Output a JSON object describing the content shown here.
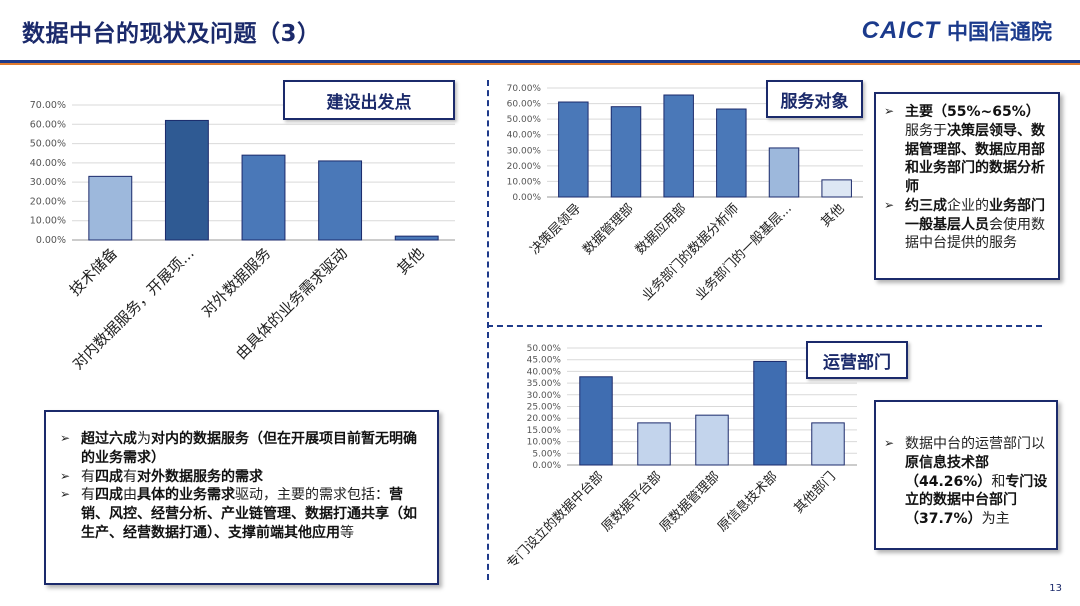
{
  "header": {
    "title": "数据中台的现状及问题（3）",
    "logo_en": "CAICT",
    "logo_cn": "中国信通院"
  },
  "tags": {
    "origin": "建设出发点",
    "service": "服务对象",
    "operation": "运营部门"
  },
  "notes": {
    "left": [
      [
        {
          "t": "超过六成",
          "b": true
        },
        {
          "t": "为",
          "b": false
        },
        {
          "t": "对内的数据服务（但在开展项目前暂无明确的业务需求）",
          "b": true
        }
      ],
      [
        {
          "t": "有",
          "b": false
        },
        {
          "t": "四成",
          "b": true
        },
        {
          "t": "有",
          "b": false
        },
        {
          "t": "对外数据服务的需求",
          "b": true
        }
      ],
      [
        {
          "t": "有",
          "b": false
        },
        {
          "t": "四成",
          "b": true
        },
        {
          "t": "由",
          "b": false
        },
        {
          "t": "具体的业务需求",
          "b": true
        },
        {
          "t": "驱动，主要的需求包括：",
          "b": false
        },
        {
          "t": "营销、风控、经营分析、产业链管理、数据打通共享（如生产、经营数据打通）、支撑前端其他应用",
          "b": true
        },
        {
          "t": "等",
          "b": false
        }
      ]
    ],
    "service": [
      [
        {
          "t": "主要（55%~65%）",
          "b": true
        },
        {
          "t": "服务于",
          "b": false
        },
        {
          "t": "决策层领导、数据管理部、数据应用部和业务部门的数据分析师",
          "b": true
        }
      ],
      [
        {
          "t": "约三成",
          "b": true
        },
        {
          "t": "企业的",
          "b": false
        },
        {
          "t": "业务部门一般基层人员",
          "b": true
        },
        {
          "t": "会使用数据中台提供的服务",
          "b": false
        }
      ]
    ],
    "operation": [
      [
        {
          "t": "数据中台的运营部门以",
          "b": false
        },
        {
          "t": "原信息技术部（44.26%）",
          "b": true
        },
        {
          "t": "和",
          "b": false
        },
        {
          "t": "专门设立的数据中台部门（37.7%）",
          "b": true
        },
        {
          "t": "为主",
          "b": false
        }
      ]
    ]
  },
  "colors": {
    "navy": "#1b2a6b",
    "bar_dark": "#2e5591",
    "bar_mid": "#4a78b8",
    "bar_light": "#a8c0e0",
    "bar_pale": "#c9d8ee",
    "bar_lightest": "#dde7f4"
  },
  "chart_data": [
    {
      "type": "bar",
      "categories": [
        "技术储备",
        "对内数据服务，开展项...",
        "对外数据服务",
        "由具体的业务需求驱动",
        "其他"
      ],
      "values": [
        0.33,
        0.62,
        0.44,
        0.41,
        0.02
      ],
      "ylim": [
        0,
        0.7
      ],
      "yticks": [
        "0.00%",
        "10.00%",
        "20.00%",
        "30.00%",
        "40.00%",
        "50.00%",
        "60.00%",
        "70.00%"
      ],
      "grid": true,
      "bar_colors": [
        "#9db8dc",
        "#2f5a93",
        "#4a78b8",
        "#4a78b8",
        "#4a78b8"
      ]
    },
    {
      "type": "bar",
      "categories": [
        "决策层领导",
        "数据管理部",
        "数据应用部",
        "业务部门的数据分析师",
        "业务部门的一般基层...",
        "其他"
      ],
      "values": [
        0.61,
        0.58,
        0.655,
        0.565,
        0.315,
        0.11
      ],
      "ylim": [
        0,
        0.7
      ],
      "yticks": [
        "0.00%",
        "10.00%",
        "20.00%",
        "30.00%",
        "40.00%",
        "50.00%",
        "60.00%",
        "70.00%"
      ],
      "grid": true,
      "bar_colors": [
        "#4a78b8",
        "#4a78b8",
        "#4a78b8",
        "#4a78b8",
        "#9db8dc",
        "#dde7f4"
      ]
    },
    {
      "type": "bar",
      "categories": [
        "专门设立的数据中台部",
        "原数据平台部",
        "原数据管理部",
        "原信息技术部",
        "其他部门"
      ],
      "values": [
        0.377,
        0.18,
        0.213,
        0.4426,
        0.18
      ],
      "ylim": [
        0,
        0.5
      ],
      "yticks": [
        "0.00%",
        "5.00%",
        "10.00%",
        "15.00%",
        "20.00%",
        "25.00%",
        "30.00%",
        "35.00%",
        "40.00%",
        "45.00%",
        "50.00%"
      ],
      "grid": true,
      "bar_colors": [
        "#3f6db1",
        "#c3d4ec",
        "#c3d4ec",
        "#3f6db1",
        "#c3d4ec"
      ]
    }
  ],
  "page_number": "13"
}
